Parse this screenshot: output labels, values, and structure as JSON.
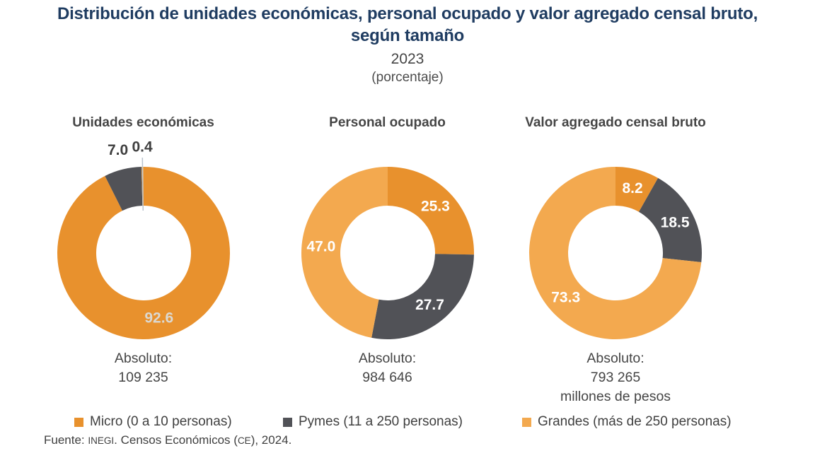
{
  "header": {
    "title_line1": "Distribución de unidades económicas, personal ocupado y valor agregado censal bruto,",
    "title_line2": "según tamaño",
    "year": "2023",
    "unit": "(porcentaje)"
  },
  "chart_data": {
    "type": "pie",
    "variant": "donut",
    "donut_hole_ratio": 0.55,
    "start_angle_deg": 0,
    "direction": "clockwise",
    "colors": {
      "micro": "#E8912D",
      "pymes": "#515257",
      "grandes": "#F3A94F"
    },
    "inside_label_color": "#FFFFFF",
    "outside_label_color": "#3F3F3F",
    "leader_line_color": "#B9C3CD",
    "charts": [
      {
        "title": "Unidades económicas",
        "absolute_label": "Absoluto:",
        "absolute_value": "109 235",
        "slices": [
          {
            "key": "micro",
            "value": 92.6,
            "label": "92.6",
            "label_pos": "inside",
            "label_color": "#DBD8D1"
          },
          {
            "key": "pymes",
            "value": 7.0,
            "label": "7.0",
            "label_pos": "outside"
          },
          {
            "key": "grandes",
            "value": 0.4,
            "label": "0.4",
            "label_pos": "outside",
            "leader": true
          }
        ]
      },
      {
        "title": "Personal ocupado",
        "absolute_label": "Absoluto:",
        "absolute_value": "984 646",
        "slices": [
          {
            "key": "micro",
            "value": 25.3,
            "label": "25.3",
            "label_pos": "inside"
          },
          {
            "key": "pymes",
            "value": 27.7,
            "label": "27.7",
            "label_pos": "inside"
          },
          {
            "key": "grandes",
            "value": 47.0,
            "label": "47.0",
            "label_pos": "inside"
          }
        ]
      },
      {
        "title": "Valor agregado censal bruto",
        "absolute_label": "Absoluto:",
        "absolute_value": "793 265",
        "absolute_unit": "millones de pesos",
        "slices": [
          {
            "key": "micro",
            "value": 8.2,
            "label": "8.2",
            "label_pos": "inside"
          },
          {
            "key": "pymes",
            "value": 18.5,
            "label": "18.5",
            "label_pos": "inside"
          },
          {
            "key": "grandes",
            "value": 73.3,
            "label": "73.3",
            "label_pos": "inside"
          }
        ]
      }
    ],
    "legend": [
      {
        "key": "micro",
        "label": "Micro (0 a 10 personas)"
      },
      {
        "key": "pymes",
        "label": "Pymes (11 a 250 personas)"
      },
      {
        "key": "grandes",
        "label": "Grandes (más de 250 personas)"
      }
    ]
  },
  "source": {
    "prefix": "Fuente: ",
    "inegi": "INEGI",
    "mid": ". Censos Económicos (",
    "ce": "CE",
    "suffix": "), 2024."
  }
}
